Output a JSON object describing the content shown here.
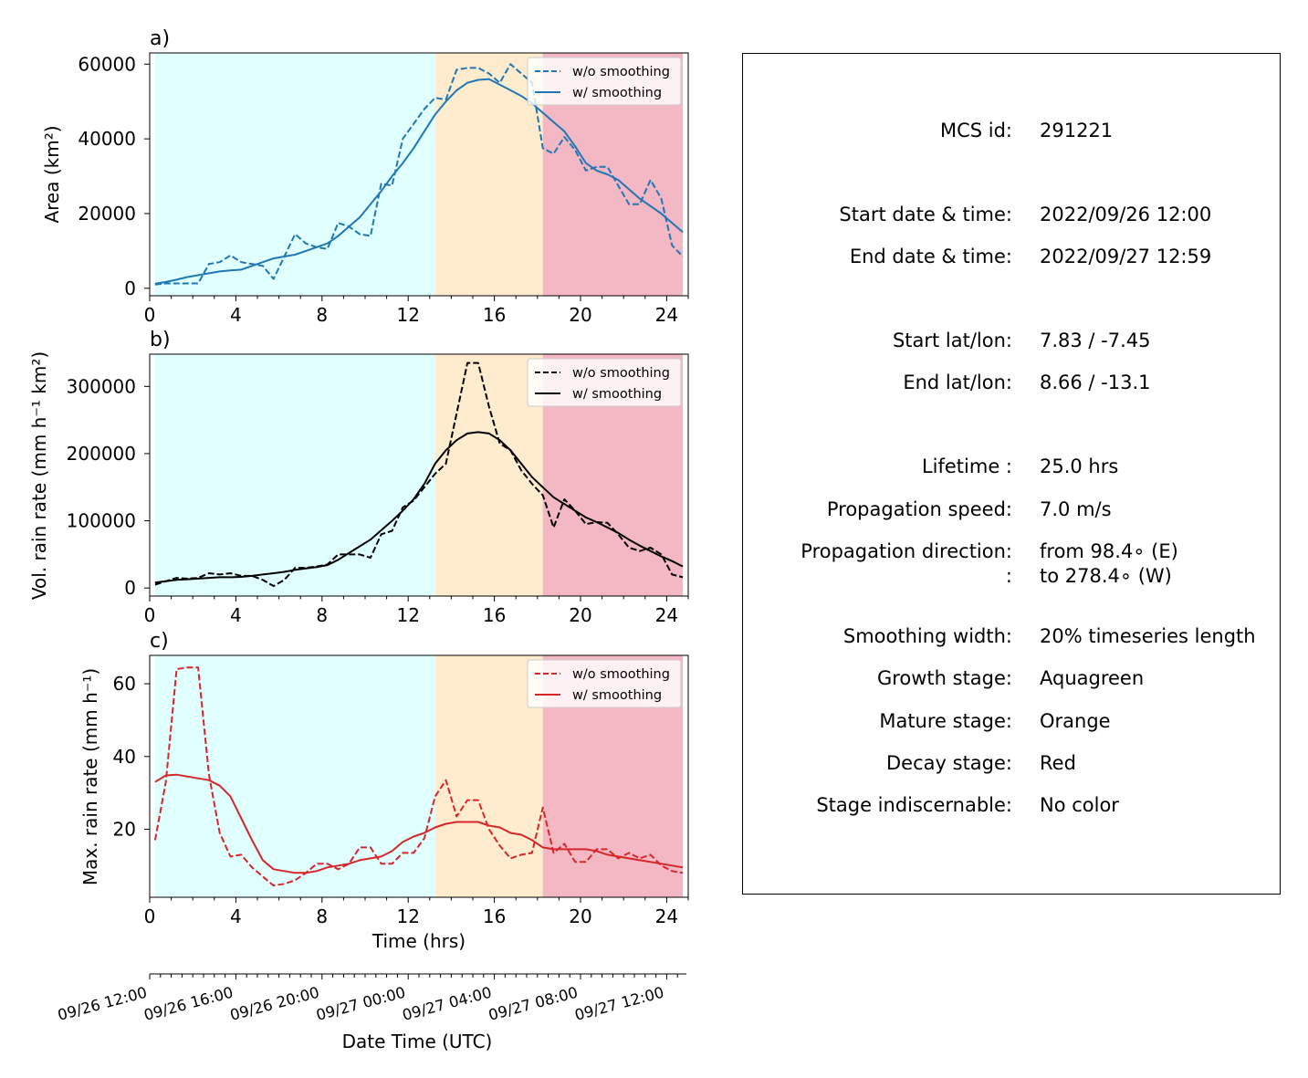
{
  "chart_data": [
    {
      "type": "line",
      "panel": "a)",
      "ylabel": "Area  (km²)",
      "xlabel": "",
      "xticks": [
        0,
        4,
        8,
        12,
        16,
        20,
        24
      ],
      "yticks": [
        0,
        20000,
        40000,
        60000
      ],
      "xlim": [
        0,
        25
      ],
      "ylim": [
        -2000,
        63000
      ],
      "legend": "top-right",
      "stages": [
        {
          "name": "growth",
          "from": 0.25,
          "to": 13.25,
          "color": "#e0ffff"
        },
        {
          "name": "mature",
          "from": 13.25,
          "to": 18.25,
          "color": "#ffebcd"
        },
        {
          "name": "decay",
          "from": 18.25,
          "to": 24.75,
          "color": "#f4b8c4"
        }
      ],
      "series": [
        {
          "name": "w/o smoothing",
          "style": "dashed",
          "color": "#1f77b4",
          "x": [
            0.25,
            0.75,
            1.25,
            1.75,
            2.25,
            2.75,
            3.25,
            3.75,
            4.25,
            4.75,
            5.25,
            5.75,
            6.25,
            6.75,
            7.25,
            7.75,
            8.25,
            8.75,
            9.25,
            9.75,
            10.25,
            10.75,
            11.25,
            11.75,
            12.25,
            12.75,
            13.25,
            13.75,
            14.25,
            14.75,
            15.25,
            15.75,
            16.25,
            16.75,
            17.25,
            17.75,
            18.25,
            18.75,
            19.25,
            19.75,
            20.25,
            20.75,
            21.25,
            21.75,
            22.25,
            22.75,
            23.25,
            23.75,
            24.25,
            24.75
          ],
          "y": [
            1000,
            1300,
            1300,
            1300,
            1300,
            6500,
            7000,
            8800,
            7000,
            6500,
            6000,
            2500,
            8500,
            14500,
            12000,
            11000,
            10500,
            17500,
            16500,
            14500,
            14000,
            28000,
            27500,
            40000,
            44000,
            48000,
            51000,
            50500,
            58500,
            59000,
            59000,
            57500,
            55000,
            60000,
            57500,
            55000,
            37500,
            36000,
            40500,
            37000,
            31500,
            32500,
            32500,
            27500,
            22500,
            22500,
            29000,
            24000,
            11500,
            8500
          ]
        },
        {
          "name": "w/ smoothing",
          "style": "solid",
          "color": "#1f77b4",
          "x": [
            0.25,
            0.75,
            1.25,
            1.75,
            2.25,
            2.75,
            3.25,
            3.75,
            4.25,
            4.75,
            5.25,
            5.75,
            6.25,
            6.75,
            7.25,
            7.75,
            8.25,
            8.75,
            9.25,
            9.75,
            10.25,
            10.75,
            11.25,
            11.75,
            12.25,
            12.75,
            13.25,
            13.75,
            14.25,
            14.75,
            15.25,
            15.75,
            16.25,
            16.75,
            17.25,
            17.75,
            18.25,
            18.75,
            19.25,
            19.75,
            20.25,
            20.75,
            21.25,
            21.75,
            22.25,
            22.75,
            23.25,
            23.75,
            24.25,
            24.75
          ],
          "y": [
            1200,
            1700,
            2300,
            3000,
            3500,
            4000,
            4500,
            4800,
            5000,
            6000,
            7000,
            8000,
            8500,
            9000,
            10000,
            11000,
            12000,
            14000,
            16500,
            19000,
            22500,
            26000,
            30000,
            33500,
            37500,
            42000,
            46500,
            50000,
            53000,
            55000,
            55800,
            56000,
            54500,
            53000,
            51500,
            49500,
            47000,
            44500,
            42000,
            38000,
            33500,
            31500,
            30500,
            29000,
            26500,
            24000,
            22000,
            20000,
            17500,
            15000
          ]
        }
      ]
    },
    {
      "type": "line",
      "panel": "b)",
      "ylabel": "Vol. rain rate (mm h⁻¹ km²)",
      "xlabel": "",
      "xticks": [
        0,
        4,
        8,
        12,
        16,
        20,
        24
      ],
      "yticks": [
        0,
        100000,
        200000,
        300000
      ],
      "xlim": [
        0,
        25
      ],
      "ylim": [
        -12000,
        348000
      ],
      "legend": "top-right",
      "series": [
        {
          "name": "w/o smoothing",
          "style": "dashed",
          "color": "#000000",
          "x": [
            0.25,
            0.75,
            1.25,
            1.75,
            2.25,
            2.75,
            3.25,
            3.75,
            4.25,
            4.75,
            5.25,
            5.75,
            6.25,
            6.75,
            7.25,
            7.75,
            8.25,
            8.75,
            9.25,
            9.75,
            10.25,
            10.75,
            11.25,
            11.75,
            12.25,
            12.75,
            13.25,
            13.75,
            14.25,
            14.75,
            15.25,
            15.75,
            16.25,
            16.75,
            17.25,
            17.75,
            18.25,
            18.75,
            19.25,
            19.75,
            20.25,
            20.75,
            21.25,
            21.75,
            22.25,
            22.75,
            23.25,
            23.75,
            24.25,
            24.75
          ],
          "y": [
            5000,
            10000,
            15000,
            14000,
            15000,
            22000,
            20000,
            22000,
            18000,
            18000,
            12000,
            3000,
            12000,
            30000,
            30000,
            32000,
            35000,
            50000,
            50000,
            50000,
            45000,
            80000,
            85000,
            120000,
            130000,
            150000,
            170000,
            185000,
            260000,
            335000,
            335000,
            270000,
            215000,
            205000,
            175000,
            155000,
            138000,
            90000,
            132000,
            115000,
            95000,
            98000,
            97000,
            80000,
            60000,
            55000,
            60000,
            50000,
            20000,
            16000
          ]
        },
        {
          "name": "w/ smoothing",
          "style": "solid",
          "color": "#000000",
          "x": [
            0.25,
            0.75,
            1.25,
            1.75,
            2.25,
            2.75,
            3.25,
            3.75,
            4.25,
            4.75,
            5.25,
            5.75,
            6.25,
            6.75,
            7.25,
            7.75,
            8.25,
            8.75,
            9.25,
            9.75,
            10.25,
            10.75,
            11.25,
            11.75,
            12.25,
            12.75,
            13.25,
            13.75,
            14.25,
            14.75,
            15.25,
            15.75,
            16.25,
            16.75,
            17.25,
            17.75,
            18.25,
            18.75,
            19.25,
            19.75,
            20.25,
            20.75,
            21.25,
            21.75,
            22.25,
            22.75,
            23.25,
            23.75,
            24.25,
            24.75
          ],
          "y": [
            8000,
            10000,
            12000,
            13000,
            14000,
            15000,
            16000,
            16000,
            16500,
            18000,
            20000,
            22000,
            24000,
            27000,
            29000,
            31000,
            34000,
            42000,
            52000,
            62000,
            72000,
            86000,
            100000,
            115000,
            132000,
            155000,
            185000,
            205000,
            220000,
            230000,
            232000,
            230000,
            220000,
            205000,
            185000,
            165000,
            150000,
            135000,
            125000,
            115000,
            105000,
            98000,
            90000,
            82000,
            72000,
            63000,
            55000,
            47000,
            40000,
            32000
          ]
        }
      ]
    },
    {
      "type": "line",
      "panel": "c)",
      "ylabel": "Max. rain rate  (mm h⁻¹)",
      "xlabel": "Time (hrs)",
      "xticks": [
        0,
        4,
        8,
        12,
        16,
        20,
        24
      ],
      "yticks": [
        20,
        40,
        60
      ],
      "xlim": [
        0,
        25
      ],
      "ylim": [
        1.3,
        67.8
      ],
      "legend": "top-right",
      "series": [
        {
          "name": "w/o smoothing",
          "style": "dashed",
          "color": "#d62728",
          "x": [
            0.25,
            0.75,
            1.25,
            1.75,
            2.25,
            2.75,
            3.25,
            3.75,
            4.25,
            4.75,
            5.25,
            5.75,
            6.25,
            6.75,
            7.25,
            7.75,
            8.25,
            8.75,
            9.25,
            9.75,
            10.25,
            10.75,
            11.25,
            11.75,
            12.25,
            12.75,
            13.25,
            13.75,
            14.25,
            14.75,
            15.25,
            15.75,
            16.25,
            16.75,
            17.25,
            17.75,
            18.25,
            18.75,
            19.25,
            19.75,
            20.25,
            20.75,
            21.25,
            21.75,
            22.25,
            22.75,
            23.25,
            23.75,
            24.25,
            24.75
          ],
          "y": [
            17,
            33,
            64,
            64.5,
            64.5,
            35,
            19,
            12.5,
            13,
            9.5,
            7,
            4.5,
            5,
            6,
            8,
            10.5,
            10.5,
            9,
            10.5,
            15,
            15,
            10.5,
            10.5,
            13.5,
            13.5,
            17.5,
            29,
            33.5,
            23.5,
            28,
            28,
            20,
            15.5,
            12,
            13,
            13.5,
            26,
            13.5,
            16,
            11,
            11,
            14.5,
            14.5,
            12,
            13.5,
            12,
            13,
            10,
            8.5,
            8
          ]
        },
        {
          "name": "w/ smoothing",
          "style": "solid",
          "color": "#d62728",
          "x": [
            0.25,
            0.75,
            1.25,
            1.75,
            2.25,
            2.75,
            3.25,
            3.75,
            4.25,
            4.75,
            5.25,
            5.75,
            6.25,
            6.75,
            7.25,
            7.75,
            8.25,
            8.75,
            9.25,
            9.75,
            10.25,
            10.75,
            11.25,
            11.75,
            12.25,
            12.75,
            13.25,
            13.75,
            14.25,
            14.75,
            15.25,
            15.75,
            16.25,
            16.75,
            17.25,
            17.75,
            18.25,
            18.75,
            19.25,
            19.75,
            20.25,
            20.75,
            21.25,
            21.75,
            22.25,
            22.75,
            23.25,
            23.75,
            24.25,
            24.75
          ],
          "y": [
            33,
            34.8,
            35,
            34.5,
            34,
            33.5,
            32,
            29,
            23,
            17,
            11.5,
            9,
            8.5,
            8,
            8,
            8.5,
            9.5,
            10,
            10.5,
            11.5,
            12,
            12.5,
            14,
            16.5,
            18,
            19,
            20.5,
            21.5,
            22,
            22,
            22,
            21,
            20.5,
            19,
            18.5,
            17,
            15,
            14.5,
            14.5,
            14.5,
            14.5,
            14,
            13,
            12.5,
            12,
            11.5,
            11,
            10.5,
            10,
            9.5
          ]
        }
      ]
    },
    {
      "type": "axis",
      "xlabel": "Date Time (UTC)",
      "tick_labels": [
        "09/26 12:00",
        "09/26 16:00",
        "09/26 20:00",
        "09/27 00:00",
        "09/27 04:00",
        "09/27 08:00",
        "09/27 12:00"
      ],
      "tick_hours": [
        0,
        4,
        8,
        12,
        16,
        20,
        24
      ]
    }
  ],
  "legend_labels": {
    "dashed": "w/o smoothing",
    "solid": "w/ smoothing"
  },
  "info": {
    "rows": [
      {
        "label": "MCS id:",
        "value": "291221"
      },
      {
        "label": "Start date & time:",
        "value": "2022/09/26 12:00"
      },
      {
        "label": "End date & time:",
        "value": "2022/09/27 12:59"
      },
      {
        "label": "Start lat/lon:",
        "value": "7.83 / -7.45"
      },
      {
        "label": "End lat/lon:",
        "value": "8.66 / -13.1"
      },
      {
        "label": "Lifetime :",
        "value": "25.0 hrs"
      },
      {
        "label": "Propagation speed:",
        "value": "7.0 m/s"
      },
      {
        "label": "Propagation direction:",
        "value": "from  98.4∘ (E)"
      },
      {
        "label": ":",
        "value": "to   278.4∘ (W)"
      },
      {
        "label": "Smoothing width:",
        "value": "20% timeseries length"
      },
      {
        "label": "Growth stage:",
        "value": "Aquagreen"
      },
      {
        "label": "Mature stage:",
        "value": "Orange"
      },
      {
        "label": "Decay stage:",
        "value": "Red"
      },
      {
        "label": "Stage indiscernable:",
        "value": "No color"
      }
    ]
  }
}
